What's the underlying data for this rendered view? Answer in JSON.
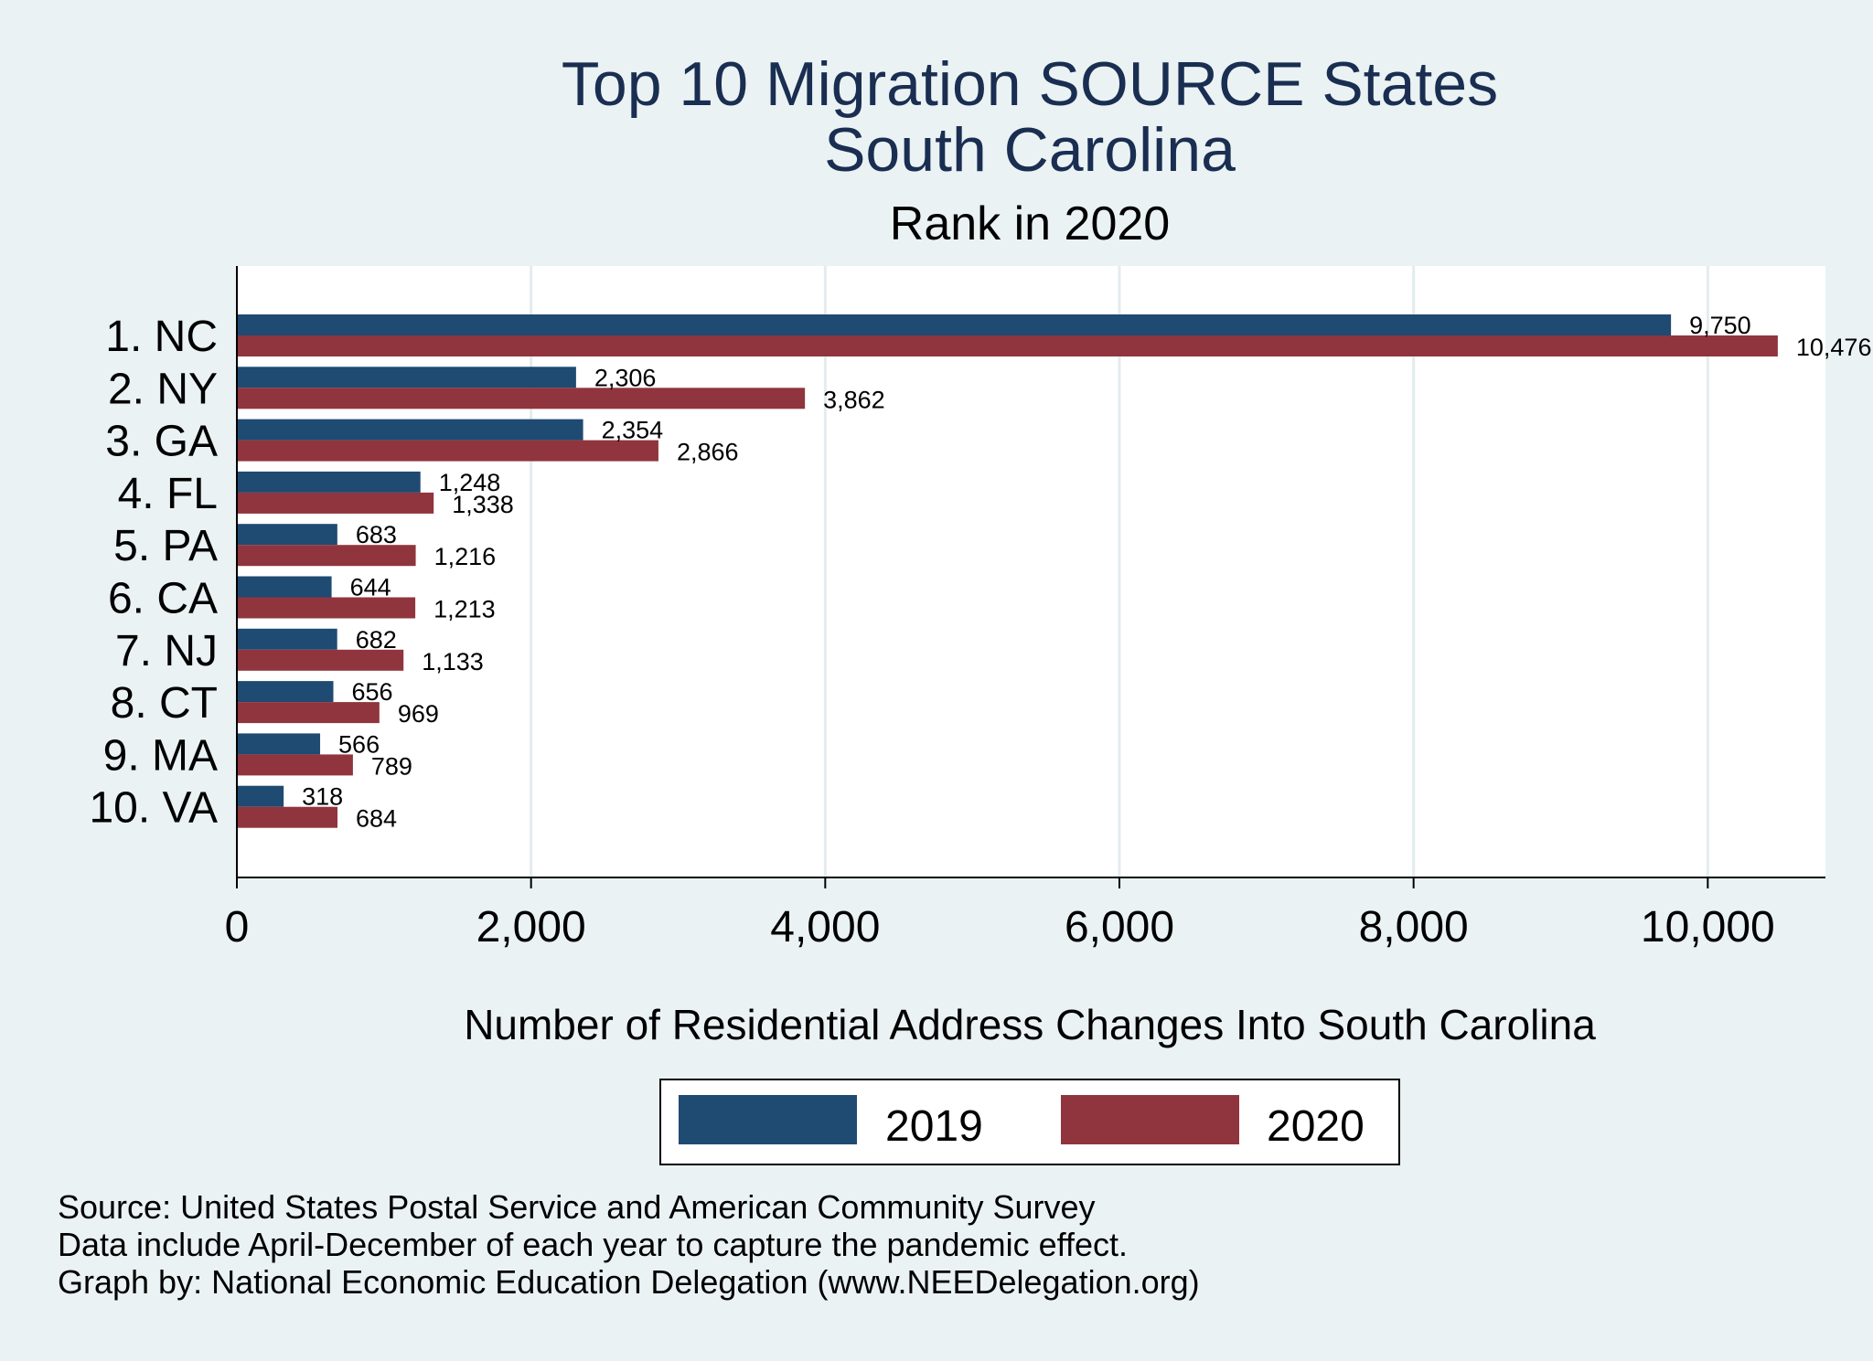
{
  "chart_data": {
    "type": "bar",
    "orientation": "horizontal",
    "title_lines": [
      "Top 10 Migration SOURCE States",
      "South Carolina"
    ],
    "subtitle": "Rank in 2020",
    "categories": [
      "1. NC",
      "2. NY",
      "3. GA",
      "4. FL",
      "5. PA",
      "6. CA",
      "7. NJ",
      "8. CT",
      "9. MA",
      "10. VA"
    ],
    "series": [
      {
        "name": "2019",
        "color": "#1f4a72",
        "values": [
          9750,
          2306,
          2354,
          1248,
          683,
          644,
          682,
          656,
          566,
          318
        ],
        "labels": [
          "9,750",
          "2,306",
          "2,354",
          "1,248",
          "683",
          "644",
          "682",
          "656",
          "566",
          "318"
        ]
      },
      {
        "name": "2020",
        "color": "#90353d",
        "values": [
          10476,
          3862,
          2866,
          1338,
          1216,
          1213,
          1133,
          969,
          789,
          684
        ],
        "labels": [
          "10,476",
          "3,862",
          "2,866",
          "1,338",
          "1,216",
          "1,213",
          "1,133",
          "969",
          "789",
          "684"
        ]
      }
    ],
    "xlim": [
      0,
      10800
    ],
    "xticks": [
      0,
      2000,
      4000,
      6000,
      8000,
      10000
    ],
    "xtick_labels": [
      "0",
      "2,000",
      "4,000",
      "6,000",
      "8,000",
      "10,000"
    ],
    "xlabel": "Number of Residential Address Changes Into South Carolina",
    "ylabel": "",
    "grid": true,
    "legend_position": "bottom-center"
  },
  "notes": [
    "Source: United States Postal Service and American Community Survey",
    "Data include April-December of each year to capture the pandemic effect.",
    "Graph by: National Economic Education Delegation (www.NEEDelegation.org)"
  ]
}
